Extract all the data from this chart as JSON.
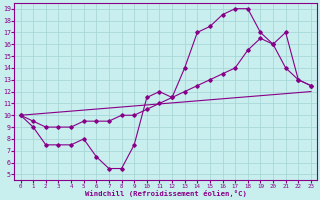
{
  "xlabel": "Windchill (Refroidissement éolien,°C)",
  "bg_color": "#c8eeee",
  "grid_color": "#a8d8d8",
  "line_color": "#880088",
  "xlim": [
    -0.5,
    23.5
  ],
  "ylim": [
    4.5,
    19.5
  ],
  "xticks": [
    0,
    1,
    2,
    3,
    4,
    5,
    6,
    7,
    8,
    9,
    10,
    11,
    12,
    13,
    14,
    15,
    16,
    17,
    18,
    19,
    20,
    21,
    22,
    23
  ],
  "yticks": [
    5,
    6,
    7,
    8,
    9,
    10,
    11,
    12,
    13,
    14,
    15,
    16,
    17,
    18,
    19
  ],
  "curve1_x": [
    0,
    1,
    2,
    3,
    4,
    5,
    6,
    7,
    8,
    9,
    10,
    11,
    12,
    13,
    14,
    15,
    16,
    17,
    18,
    19,
    20,
    21,
    22,
    23
  ],
  "curve1_y": [
    10,
    9,
    7.5,
    7.5,
    7.5,
    8.0,
    6.5,
    5.5,
    5.5,
    7.5,
    11.5,
    12,
    11.5,
    14.0,
    17.0,
    17.5,
    18.5,
    19.0,
    19.0,
    17.0,
    16.0,
    14.0,
    13.0,
    12.5
  ],
  "curve2_x": [
    0,
    1,
    2,
    3,
    4,
    5,
    6,
    7,
    8,
    9,
    10,
    11,
    12,
    13,
    14,
    15,
    16,
    17,
    18,
    19,
    20,
    21,
    22,
    23
  ],
  "curve2_y": [
    10,
    9.5,
    9.0,
    9.0,
    9.0,
    9.5,
    9.5,
    9.5,
    10.0,
    10.0,
    10.5,
    11.0,
    11.5,
    12.0,
    12.5,
    13.0,
    13.5,
    14.0,
    15.5,
    16.5,
    16.0,
    17.0,
    13.0,
    12.5
  ],
  "curve3_x": [
    0,
    23
  ],
  "curve3_y": [
    10,
    12
  ]
}
